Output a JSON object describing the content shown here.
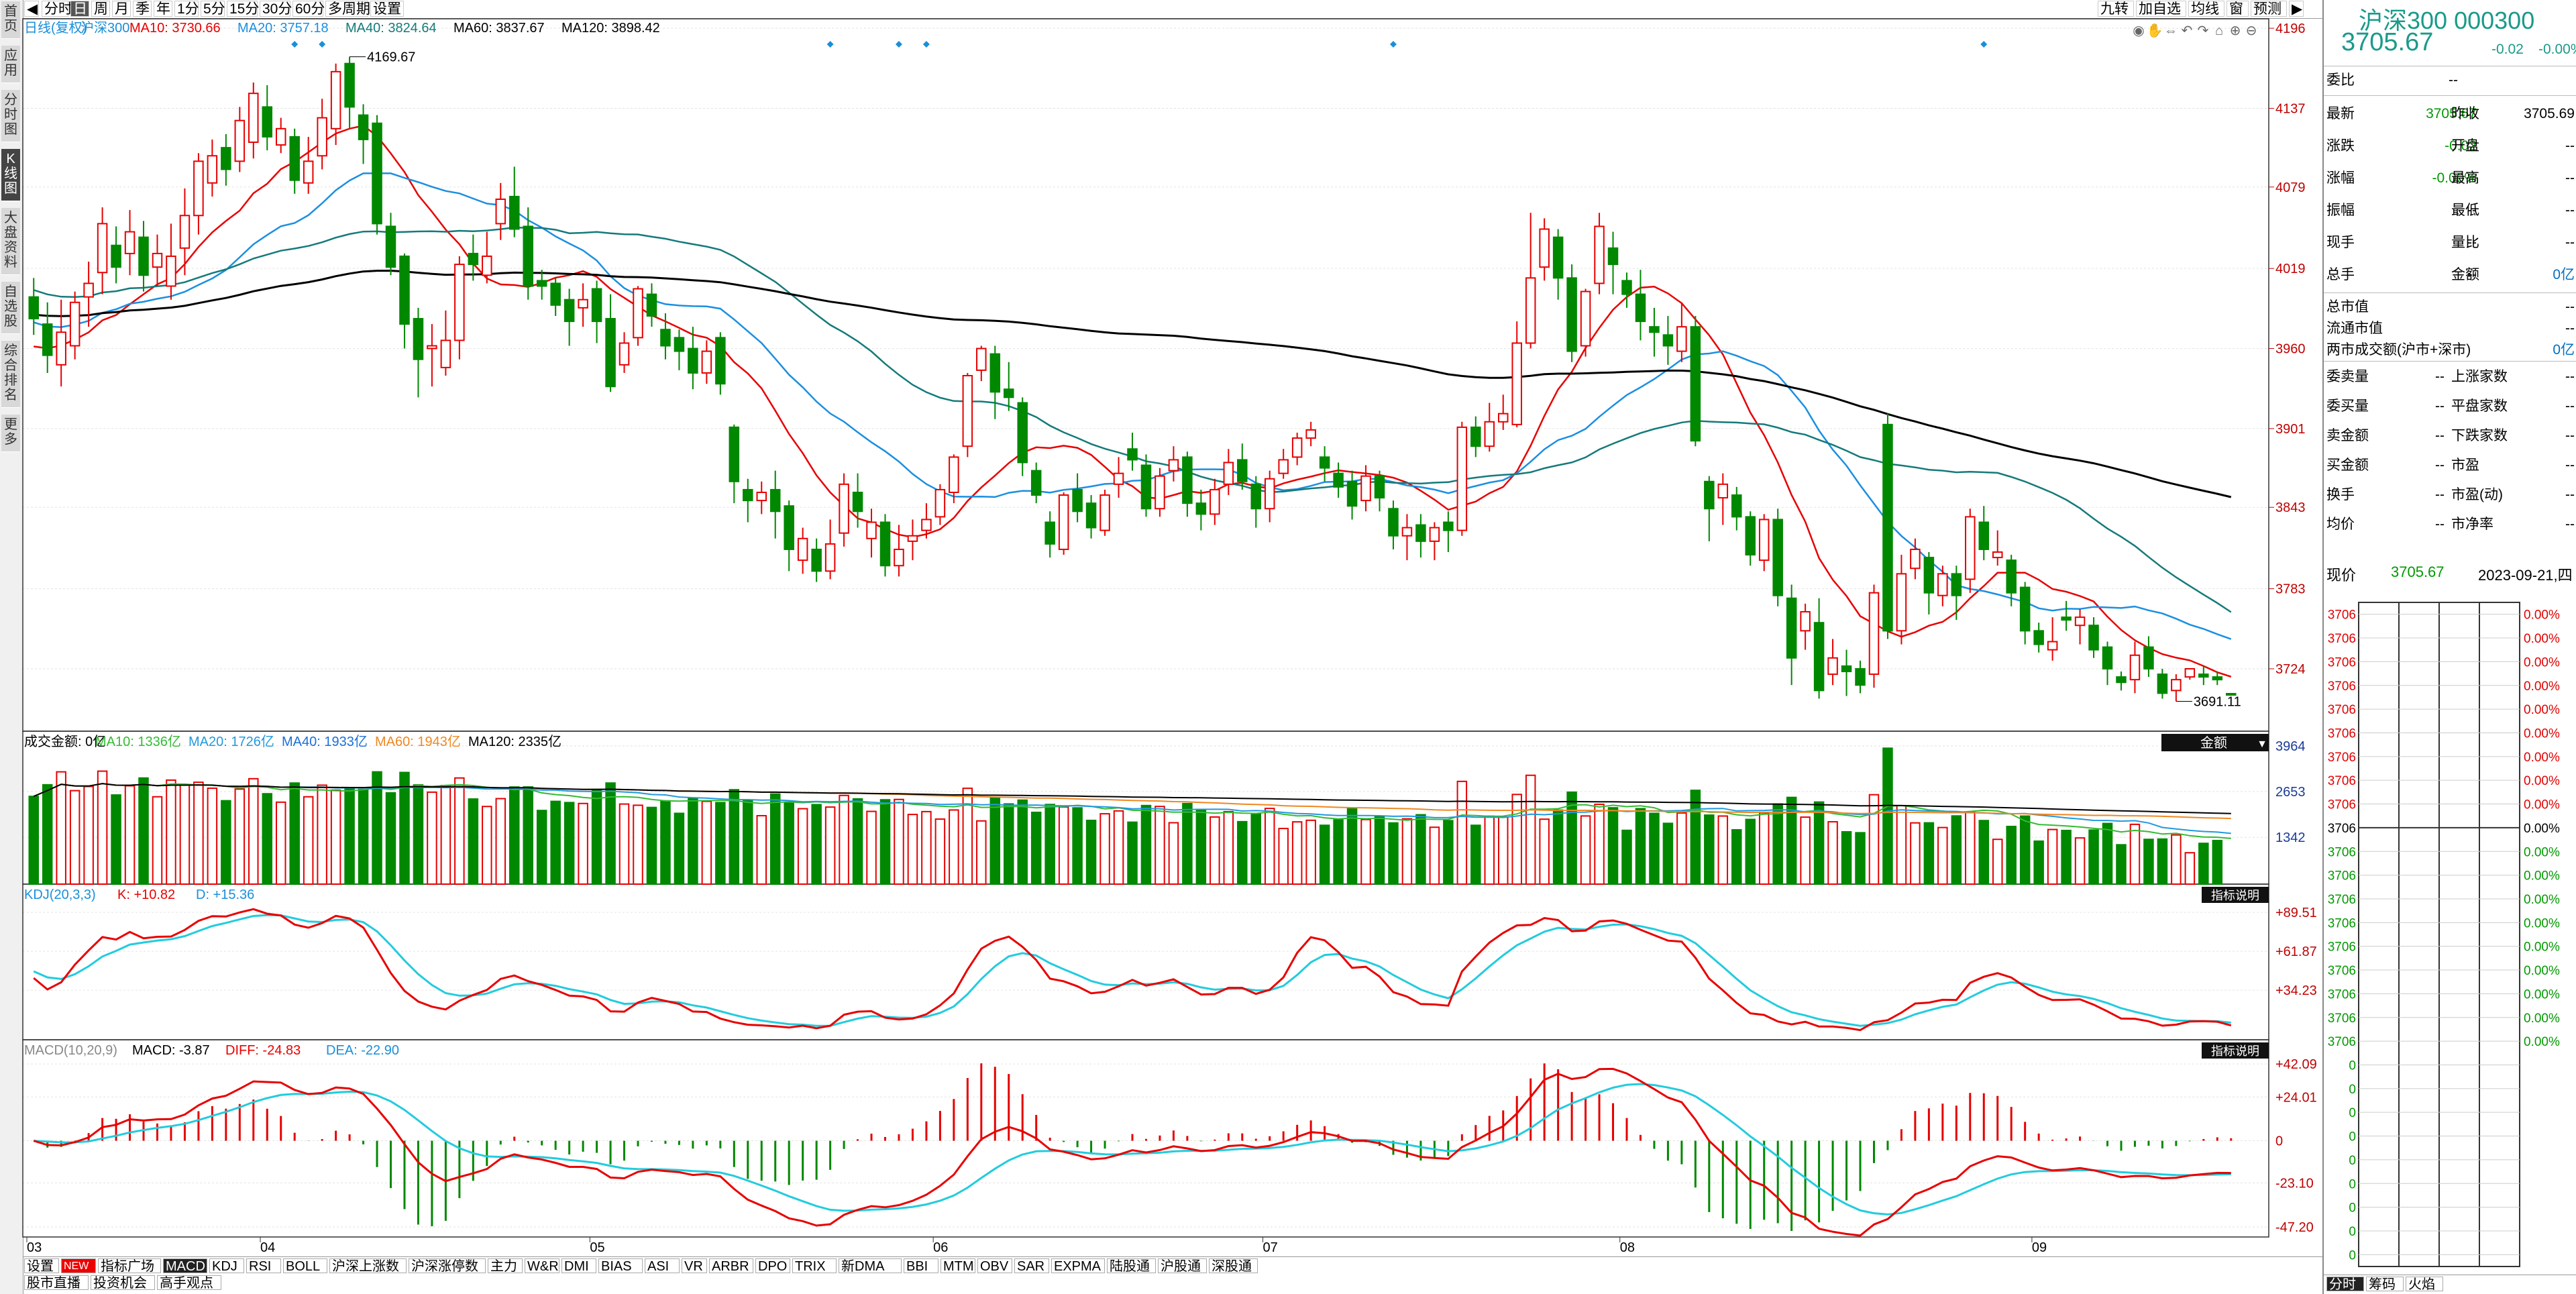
{
  "toolbar": {
    "left_arrow": "◀",
    "items": [
      "分时",
      "日",
      "周",
      "月",
      "季",
      "年",
      "1分",
      "5分",
      "15分",
      "30分",
      "60分",
      "多周期",
      "设置"
    ],
    "active": "日",
    "right_items": [
      "九转",
      "加自选",
      "均线",
      "窗",
      "预测"
    ],
    "right_arrow": "▶"
  },
  "leftstrip": {
    "items": [
      "首页",
      "应用",
      "分时图",
      "K线图",
      "大盘资料",
      "自选股",
      "综合排名",
      "更多"
    ],
    "active": "K线图"
  },
  "main_legend": {
    "title": "日线(复权)",
    "name": "沪深300",
    "ma10": "MA10: 3730.66",
    "ma20": "MA20: 3757.18",
    "ma40": "MA40: 3824.64",
    "ma60": "MA60: 3837.67",
    "ma120": "MA120: 3898.42"
  },
  "icons": [
    "eye-icon",
    "hand-icon",
    "arrows-icon",
    "undo-icon",
    "lock-icon",
    "home-icon",
    "zoom-in-icon",
    "zoom-out-icon"
  ],
  "price_axis": [
    "4196",
    "4137",
    "4079",
    "4019",
    "3960",
    "3901",
    "3843",
    "3783",
    "3724"
  ],
  "annotations": {
    "high": "4169.67",
    "low": "3691.11"
  },
  "vol_legend": {
    "label": "成交金额: 0亿",
    "ma10": "MA10: 1336亿",
    "ma20": "MA20: 1726亿",
    "ma40": "MA40: 1933亿",
    "ma60": "MA60: 1943亿",
    "ma120": "MA120: 2335亿",
    "dropdown": "金额"
  },
  "vol_axis": [
    "3964",
    "2653",
    "1342"
  ],
  "kdj_legend": {
    "label": "KDJ(20,3,3)",
    "k": "K: +10.82",
    "d": "D: +15.36"
  },
  "kdj_axis": [
    "+89.51",
    "+61.87",
    "+34.23"
  ],
  "macd_legend": {
    "label": "MACD(10,20,9)",
    "macd": "MACD: -3.87",
    "diff": "DIFF: -24.83",
    "dea": "DEA: -22.90"
  },
  "macd_axis": [
    "+42.09",
    "+24.01",
    "0",
    "-23.10",
    "-47.20"
  ],
  "indicator_btn": "指标说明",
  "months": [
    "03",
    "04",
    "05",
    "06",
    "07",
    "08",
    "09"
  ],
  "colors": {
    "up": "#e60000",
    "down": "#008800",
    "ma10": "#e80000",
    "ma20": "#1b8fe0",
    "ma40": "#157a7a",
    "ma120": "#000000",
    "vma10": "#33bb33",
    "vma20": "#2299dd",
    "vma60": "#ee8822",
    "kdj_k": "#e80000",
    "kdj_d": "#22ccdd",
    "macd_diff": "#e80000",
    "macd_dea": "#22ccdd"
  },
  "bottom_tabs": {
    "items": [
      "设置",
      "NEW",
      "指标广场",
      "MACD",
      "KDJ",
      "RSI",
      "BOLL",
      "沪深上涨数",
      "沪深涨停数",
      "主力",
      "W&R",
      "DMI",
      "BIAS",
      "ASI",
      "VR",
      "ARBR",
      "DPO",
      "TRIX",
      "新DMA",
      "BBI",
      "MTM",
      "OBV",
      "SAR",
      "EXPMA",
      "陆股通",
      "沪股通",
      "深股通"
    ],
    "active": "MACD",
    "row2": [
      "股市直播",
      "投资机会",
      "高手观点"
    ]
  },
  "quote": {
    "name": "沪深300",
    "code": "000300",
    "price": "3705.67",
    "change": "-0.02",
    "pct": "-0.00%",
    "weibi_label": "委比",
    "weibi": "--",
    "rows": [
      {
        "l1": "最新",
        "v1": "3705.67",
        "l2": "昨收",
        "v2": "3705.69"
      },
      {
        "l1": "涨跌",
        "v1": "-0.02",
        "l2": "开盘",
        "v2": "--"
      },
      {
        "l1": "涨幅",
        "v1": "-0.00%",
        "l2": "最高",
        "v2": "--"
      },
      {
        "l1": "振幅",
        "v1": "--",
        "l2": "最低",
        "v2": "--"
      },
      {
        "l1": "现手",
        "v1": "--",
        "l2": "量比",
        "v2": "--"
      },
      {
        "l1": "总手",
        "v1": "--",
        "l2": "金额",
        "v2": "0亿"
      }
    ],
    "single": [
      {
        "l": "总市值",
        "v": "--"
      },
      {
        "l": "流通市值",
        "v": "--"
      },
      {
        "l": "两市成交额(沪市+深市)",
        "v": "0亿"
      }
    ],
    "rows2": [
      {
        "l1": "委卖量",
        "v1": "--",
        "l2": "上涨家数",
        "v2": "--"
      },
      {
        "l1": "委买量",
        "v1": "--",
        "l2": "平盘家数",
        "v2": "--"
      },
      {
        "l1": "卖金额",
        "v1": "--",
        "l2": "下跌家数",
        "v2": "--"
      },
      {
        "l1": "买金额",
        "v1": "--",
        "l2": "市盈",
        "v2": "--"
      },
      {
        "l1": "换手",
        "v1": "--",
        "l2": "市盈(动)",
        "v2": "--"
      },
      {
        "l1": "均价",
        "v1": "--",
        "l2": "市净率",
        "v2": "--"
      }
    ],
    "now_label": "现价",
    "now_price": "3705.67",
    "date": "2023-09-21,四"
  },
  "mini": {
    "left_labels": [
      "3706",
      "3706",
      "3706",
      "3706",
      "3706",
      "3706",
      "3706",
      "3706",
      "3706",
      "3706",
      "3706",
      "3706",
      "3706",
      "3706",
      "3706",
      "3706",
      "3706",
      "3706",
      "3706",
      "0",
      "0",
      "0",
      "0",
      "0",
      "0",
      "0",
      "0",
      "0"
    ],
    "right_labels": [
      "0.00%",
      "0.00%",
      "0.00%",
      "0.00%",
      "0.00%",
      "0.00%",
      "0.00%",
      "0.00%",
      "0.00%",
      "0.00%",
      "0.00%",
      "0.00%",
      "0.00%",
      "0.00%",
      "0.00%",
      "0.00%",
      "0.00%",
      "0.00%",
      "0.00%"
    ]
  },
  "right_tabs": {
    "items": [
      "分时",
      "筹码",
      "火焰"
    ],
    "active": "分时"
  },
  "chart_data": {
    "type": "candlestick",
    "symbol": "沪深300",
    "candles": [
      [
        3998,
        3982,
        4012,
        3970
      ],
      [
        3978,
        3955,
        3994,
        3942
      ],
      [
        3948,
        3972,
        3996,
        3932
      ],
      [
        3962,
        3994,
        4002,
        3952
      ],
      [
        3998,
        4008,
        4024,
        3976
      ],
      [
        4016,
        4052,
        4064,
        4000
      ],
      [
        4036,
        4020,
        4050,
        4008
      ],
      [
        4030,
        4046,
        4062,
        4014
      ],
      [
        4042,
        4014,
        4054,
        4002
      ],
      [
        4020,
        4030,
        4044,
        4006
      ],
      [
        4006,
        4028,
        4052,
        3996
      ],
      [
        4034,
        4058,
        4078,
        4014
      ],
      [
        4058,
        4098,
        4104,
        4044
      ],
      [
        4082,
        4102,
        4114,
        4072
      ],
      [
        4108,
        4092,
        4118,
        4080
      ],
      [
        4098,
        4128,
        4138,
        4090
      ],
      [
        4112,
        4148,
        4156,
        4100
      ],
      [
        4138,
        4116,
        4154,
        4106
      ],
      [
        4110,
        4122,
        4130,
        4104
      ],
      [
        4116,
        4084,
        4122,
        4074
      ],
      [
        4082,
        4098,
        4116,
        4074
      ],
      [
        4102,
        4130,
        4144,
        4092
      ],
      [
        4122,
        4164,
        4170,
        4110
      ],
      [
        4170,
        4138,
        4175,
        4122
      ],
      [
        4132,
        4114,
        4140,
        4096
      ],
      [
        4126,
        4052,
        4132,
        4044
      ],
      [
        4050,
        4020,
        4060,
        4014
      ],
      [
        4028,
        3978,
        4030,
        3960
      ],
      [
        3982,
        3952,
        3990,
        3924
      ],
      [
        3960,
        3962,
        3978,
        3932
      ],
      [
        3946,
        3966,
        3988,
        3940
      ],
      [
        3966,
        4022,
        4028,
        3952
      ],
      [
        4030,
        4022,
        4044,
        4010
      ],
      [
        4014,
        4028,
        4046,
        4008
      ],
      [
        4052,
        4070,
        4082,
        4040
      ],
      [
        4072,
        4048,
        4094,
        4042
      ],
      [
        4050,
        4006,
        4064,
        3996
      ],
      [
        4010,
        4006,
        4018,
        3996
      ],
      [
        4008,
        3992,
        4012,
        3984
      ],
      [
        3996,
        3980,
        4004,
        3962
      ],
      [
        3990,
        3996,
        4008,
        3976
      ],
      [
        4004,
        3980,
        4010,
        3964
      ],
      [
        3982,
        3932,
        4000,
        3928
      ],
      [
        3948,
        3964,
        3972,
        3942
      ],
      [
        3968,
        4004,
        4006,
        3962
      ],
      [
        4000,
        3984,
        4008,
        3976
      ],
      [
        3974,
        3962,
        3986,
        3952
      ],
      [
        3968,
        3958,
        3974,
        3944
      ],
      [
        3960,
        3942,
        3976,
        3930
      ],
      [
        3942,
        3958,
        3966,
        3934
      ],
      [
        3968,
        3934,
        3972,
        3926
      ],
      [
        3902,
        3862,
        3904,
        3846
      ],
      [
        3856,
        3848,
        3864,
        3832
      ],
      [
        3848,
        3854,
        3862,
        3838
      ],
      [
        3856,
        3840,
        3870,
        3820
      ],
      [
        3844,
        3812,
        3848,
        3796
      ],
      [
        3804,
        3820,
        3828,
        3794
      ],
      [
        3812,
        3796,
        3820,
        3788
      ],
      [
        3796,
        3816,
        3834,
        3790
      ],
      [
        3824,
        3860,
        3868,
        3814
      ],
      [
        3854,
        3840,
        3868,
        3828
      ],
      [
        3820,
        3832,
        3842,
        3806
      ],
      [
        3832,
        3800,
        3838,
        3792
      ],
      [
        3800,
        3812,
        3830,
        3792
      ],
      [
        3818,
        3822,
        3834,
        3804
      ],
      [
        3826,
        3834,
        3846,
        3820
      ],
      [
        3836,
        3856,
        3860,
        3830
      ],
      [
        3854,
        3880,
        3882,
        3846
      ],
      [
        3888,
        3940,
        3942,
        3880
      ],
      [
        3944,
        3960,
        3962,
        3936
      ],
      [
        3956,
        3928,
        3962,
        3908
      ],
      [
        3930,
        3924,
        3950,
        3914
      ],
      [
        3920,
        3876,
        3924,
        3866
      ],
      [
        3870,
        3852,
        3876,
        3846
      ],
      [
        3832,
        3816,
        3840,
        3806
      ],
      [
        3812,
        3852,
        3854,
        3808
      ],
      [
        3856,
        3840,
        3868,
        3832
      ],
      [
        3846,
        3828,
        3852,
        3820
      ],
      [
        3826,
        3852,
        3856,
        3822
      ],
      [
        3860,
        3868,
        3880,
        3850
      ],
      [
        3886,
        3878,
        3898,
        3870
      ],
      [
        3874,
        3842,
        3882,
        3836
      ],
      [
        3842,
        3866,
        3872,
        3836
      ],
      [
        3870,
        3878,
        3888,
        3862
      ],
      [
        3880,
        3846,
        3884,
        3836
      ],
      [
        3846,
        3838,
        3856,
        3826
      ],
      [
        3838,
        3856,
        3864,
        3830
      ],
      [
        3860,
        3876,
        3886,
        3852
      ],
      [
        3878,
        3862,
        3890,
        3856
      ],
      [
        3860,
        3842,
        3866,
        3828
      ],
      [
        3842,
        3864,
        3870,
        3832
      ],
      [
        3868,
        3878,
        3886,
        3864
      ],
      [
        3880,
        3894,
        3898,
        3874
      ],
      [
        3894,
        3900,
        3906,
        3888
      ],
      [
        3880,
        3872,
        3888,
        3862
      ],
      [
        3868,
        3858,
        3876,
        3850
      ],
      [
        3862,
        3844,
        3870,
        3834
      ],
      [
        3848,
        3866,
        3874,
        3840
      ],
      [
        3866,
        3850,
        3870,
        3840
      ],
      [
        3842,
        3822,
        3848,
        3812
      ],
      [
        3822,
        3828,
        3838,
        3804
      ],
      [
        3830,
        3818,
        3838,
        3806
      ],
      [
        3818,
        3828,
        3832,
        3804
      ],
      [
        3832,
        3826,
        3840,
        3810
      ],
      [
        3826,
        3902,
        3906,
        3822
      ],
      [
        3902,
        3888,
        3910,
        3880
      ],
      [
        3888,
        3906,
        3920,
        3884
      ],
      [
        3906,
        3912,
        3926,
        3900
      ],
      [
        3904,
        3964,
        3980,
        3902
      ],
      [
        3964,
        4012,
        4060,
        3960
      ],
      [
        4020,
        4048,
        4056,
        4010
      ],
      [
        4042,
        4012,
        4048,
        3996
      ],
      [
        4012,
        3958,
        4022,
        3950
      ],
      [
        3962,
        4002,
        4004,
        3954
      ],
      [
        4008,
        4050,
        4060,
        4000
      ],
      [
        4034,
        4022,
        4046,
        4000
      ],
      [
        4010,
        4000,
        4016,
        3990
      ],
      [
        4000,
        3980,
        4018,
        3966
      ],
      [
        3976,
        3972,
        3990,
        3954
      ],
      [
        3970,
        3962,
        3984,
        3948
      ],
      [
        3958,
        3976,
        3994,
        3950
      ],
      [
        3976,
        3892,
        3984,
        3888
      ],
      [
        3862,
        3842,
        3866,
        3818
      ],
      [
        3850,
        3860,
        3868,
        3830
      ],
      [
        3852,
        3836,
        3858,
        3826
      ],
      [
        3836,
        3808,
        3840,
        3800
      ],
      [
        3804,
        3834,
        3838,
        3796
      ],
      [
        3834,
        3778,
        3842,
        3770
      ],
      [
        3776,
        3732,
        3786,
        3712
      ],
      [
        3752,
        3766,
        3772,
        3738
      ],
      [
        3758,
        3708,
        3776,
        3702
      ],
      [
        3720,
        3732,
        3746,
        3712
      ],
      [
        3726,
        3722,
        3738,
        3704
      ],
      [
        3724,
        3712,
        3730,
        3706
      ],
      [
        3720,
        3780,
        3786,
        3710
      ],
      [
        3904,
        3752,
        3912,
        3746
      ],
      [
        3752,
        3794,
        3808,
        3742
      ],
      [
        3798,
        3812,
        3820,
        3790
      ],
      [
        3806,
        3780,
        3810,
        3764
      ],
      [
        3778,
        3794,
        3800,
        3770
      ],
      [
        3794,
        3778,
        3800,
        3760
      ],
      [
        3790,
        3836,
        3842,
        3780
      ],
      [
        3832,
        3812,
        3844,
        3804
      ],
      [
        3806,
        3810,
        3826,
        3800
      ],
      [
        3804,
        3780,
        3808,
        3770
      ],
      [
        3784,
        3752,
        3788,
        3742
      ],
      [
        3752,
        3742,
        3758,
        3736
      ],
      [
        3738,
        3744,
        3762,
        3730
      ],
      [
        3762,
        3760,
        3774,
        3752
      ],
      [
        3756,
        3762,
        3768,
        3742
      ],
      [
        3756,
        3738,
        3762,
        3732
      ],
      [
        3740,
        3724,
        3744,
        3712
      ],
      [
        3718,
        3714,
        3722,
        3708
      ],
      [
        3716,
        3734,
        3744,
        3706
      ],
      [
        3740,
        3724,
        3748,
        3718
      ],
      [
        3720,
        3706,
        3724,
        3702
      ],
      [
        3708,
        3716,
        3720,
        3700
      ],
      [
        3718,
        3724,
        3722,
        3716
      ],
      [
        3720,
        3718,
        3726,
        3712
      ],
      [
        3718,
        3716,
        3722,
        3712
      ],
      [
        3705.69,
        3705.67,
        3705.69,
        3705.67
      ]
    ]
  }
}
